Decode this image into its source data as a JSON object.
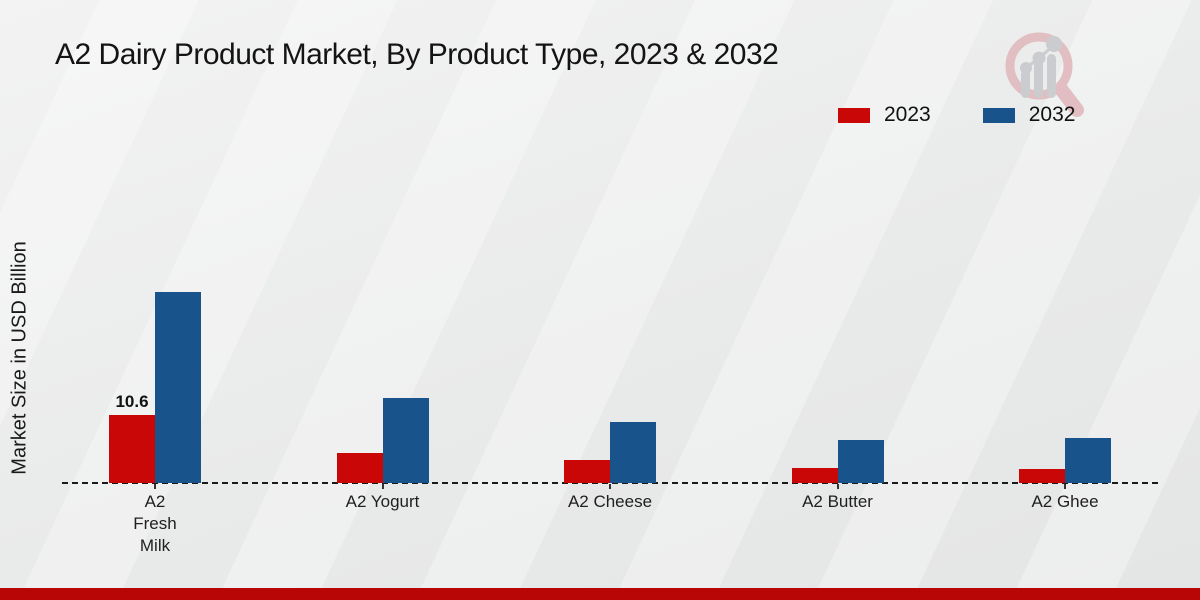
{
  "page": {
    "footer_accent_color": "#b80505",
    "background_color": "#ebecec"
  },
  "chart_data": {
    "type": "bar",
    "title": "A2 Dairy Product Market, By Product Type, 2023 & 2032",
    "xlabel": "",
    "ylabel": "Market Size in USD Billion",
    "categories": [
      "A2 Fresh Milk",
      "A2 Yogurt",
      "A2 Cheese",
      "A2 Butter",
      "A2 Ghee"
    ],
    "category_label_lines": [
      [
        "A2",
        "Fresh",
        "Milk"
      ],
      [
        "A2 Yogurt"
      ],
      [
        "A2 Cheese"
      ],
      [
        "A2 Butter"
      ],
      [
        "A2 Ghee"
      ]
    ],
    "series": [
      {
        "name": "2023",
        "color": "#c90707",
        "values": [
          10.6,
          4.6,
          3.5,
          2.4,
          2.1
        ]
      },
      {
        "name": "2032",
        "color": "#18538b",
        "values": [
          29.6,
          13.2,
          9.4,
          6.7,
          6.9
        ]
      }
    ],
    "data_labels": [
      {
        "series": "2023",
        "category": "A2 Fresh Milk",
        "text": "10.6"
      }
    ],
    "ylim": [
      0,
      32
    ],
    "grid": false,
    "axis_line_style": "dashed",
    "legend_position": "top-right"
  },
  "watermark": {
    "icon": "magnifier-bar-chart-logo",
    "circle_color": "#e0b6bb",
    "bars_color": "#c5c7ca"
  }
}
